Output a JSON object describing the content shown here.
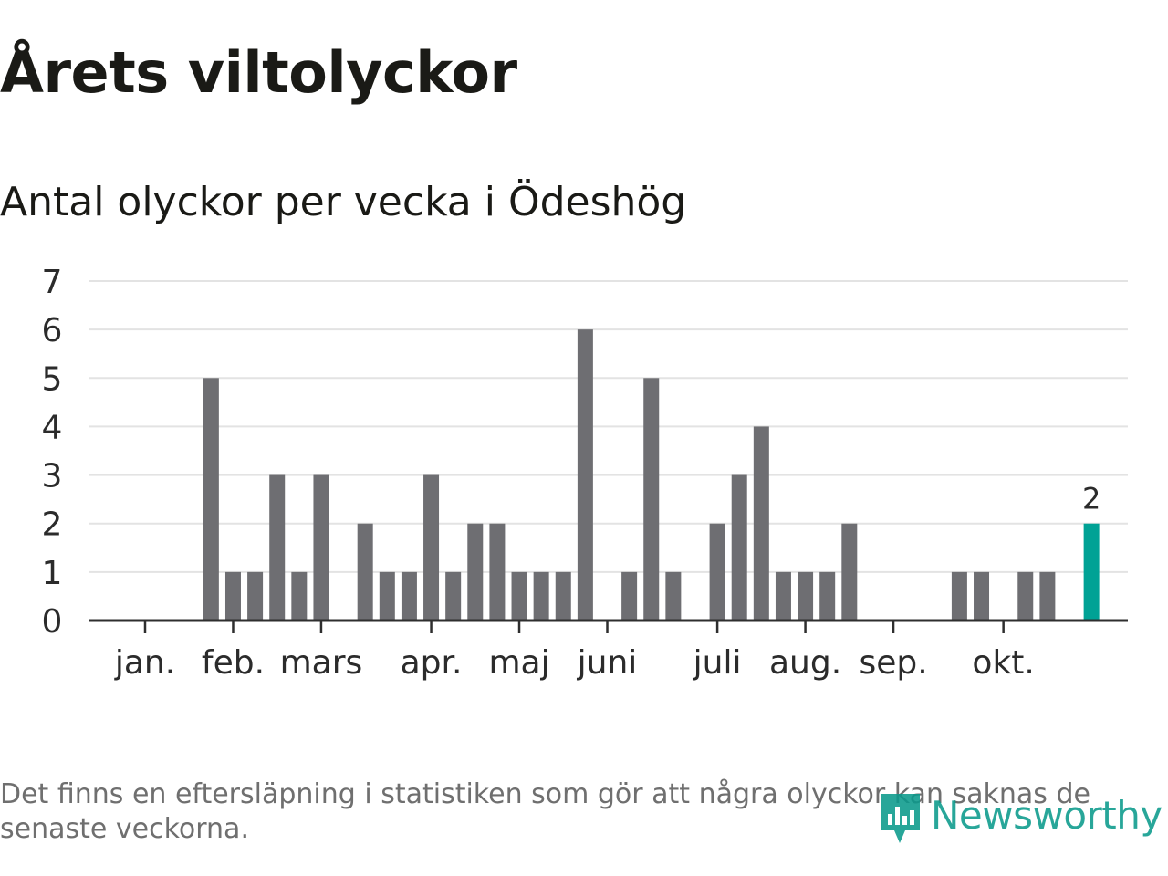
{
  "title": "Årets viltolyckor",
  "subtitle": "Antal olyckor per vecka i Ödeshög",
  "footnote": "Det finns en eftersläpning i statistiken som gör att några olyckor kan saknas de senaste veckorna.",
  "brand": {
    "name": "Newsworthy",
    "logo_icon": "chart-speech-bubble-icon",
    "color": "#0b9a8c"
  },
  "chart_data": {
    "type": "bar",
    "title": "Antal olyckor per vecka i Ödeshög",
    "xlabel": "",
    "ylabel": "",
    "ylim": [
      0,
      7
    ],
    "yticks": [
      0,
      1,
      2,
      3,
      4,
      5,
      6,
      7
    ],
    "grid": true,
    "legend": "none",
    "weeks": [
      1,
      2,
      3,
      4,
      5,
      6,
      7,
      8,
      9,
      10,
      11,
      12,
      13,
      14,
      15,
      16,
      17,
      18,
      19,
      20,
      21,
      22,
      23,
      24,
      25,
      26,
      27,
      28,
      29,
      30,
      31,
      32,
      33,
      34,
      35,
      36,
      37,
      38,
      39,
      40,
      41,
      42,
      43,
      44
    ],
    "values": [
      0,
      0,
      0,
      5,
      1,
      1,
      3,
      1,
      3,
      0,
      2,
      1,
      1,
      3,
      1,
      2,
      2,
      1,
      1,
      1,
      6,
      0,
      1,
      5,
      1,
      0,
      2,
      3,
      4,
      1,
      1,
      1,
      2,
      0,
      0,
      0,
      0,
      1,
      1,
      0,
      1,
      1,
      0,
      2
    ],
    "month_ticks": [
      {
        "label": "jan.",
        "week": 1
      },
      {
        "label": "feb.",
        "week": 5
      },
      {
        "label": "mars",
        "week": 9
      },
      {
        "label": "apr.",
        "week": 14
      },
      {
        "label": "maj",
        "week": 18
      },
      {
        "label": "juni",
        "week": 22
      },
      {
        "label": "juli",
        "week": 27
      },
      {
        "label": "aug.",
        "week": 31
      },
      {
        "label": "sep.",
        "week": 35
      },
      {
        "label": "okt.",
        "week": 40
      }
    ],
    "highlight": {
      "week": 44,
      "label": "2"
    },
    "colors": {
      "bar": "#6e6e72",
      "highlight": "#00a295",
      "grid": "#e3e3e3",
      "axis": "#2e2e2e",
      "tick_text": "#2b2b2b"
    }
  }
}
